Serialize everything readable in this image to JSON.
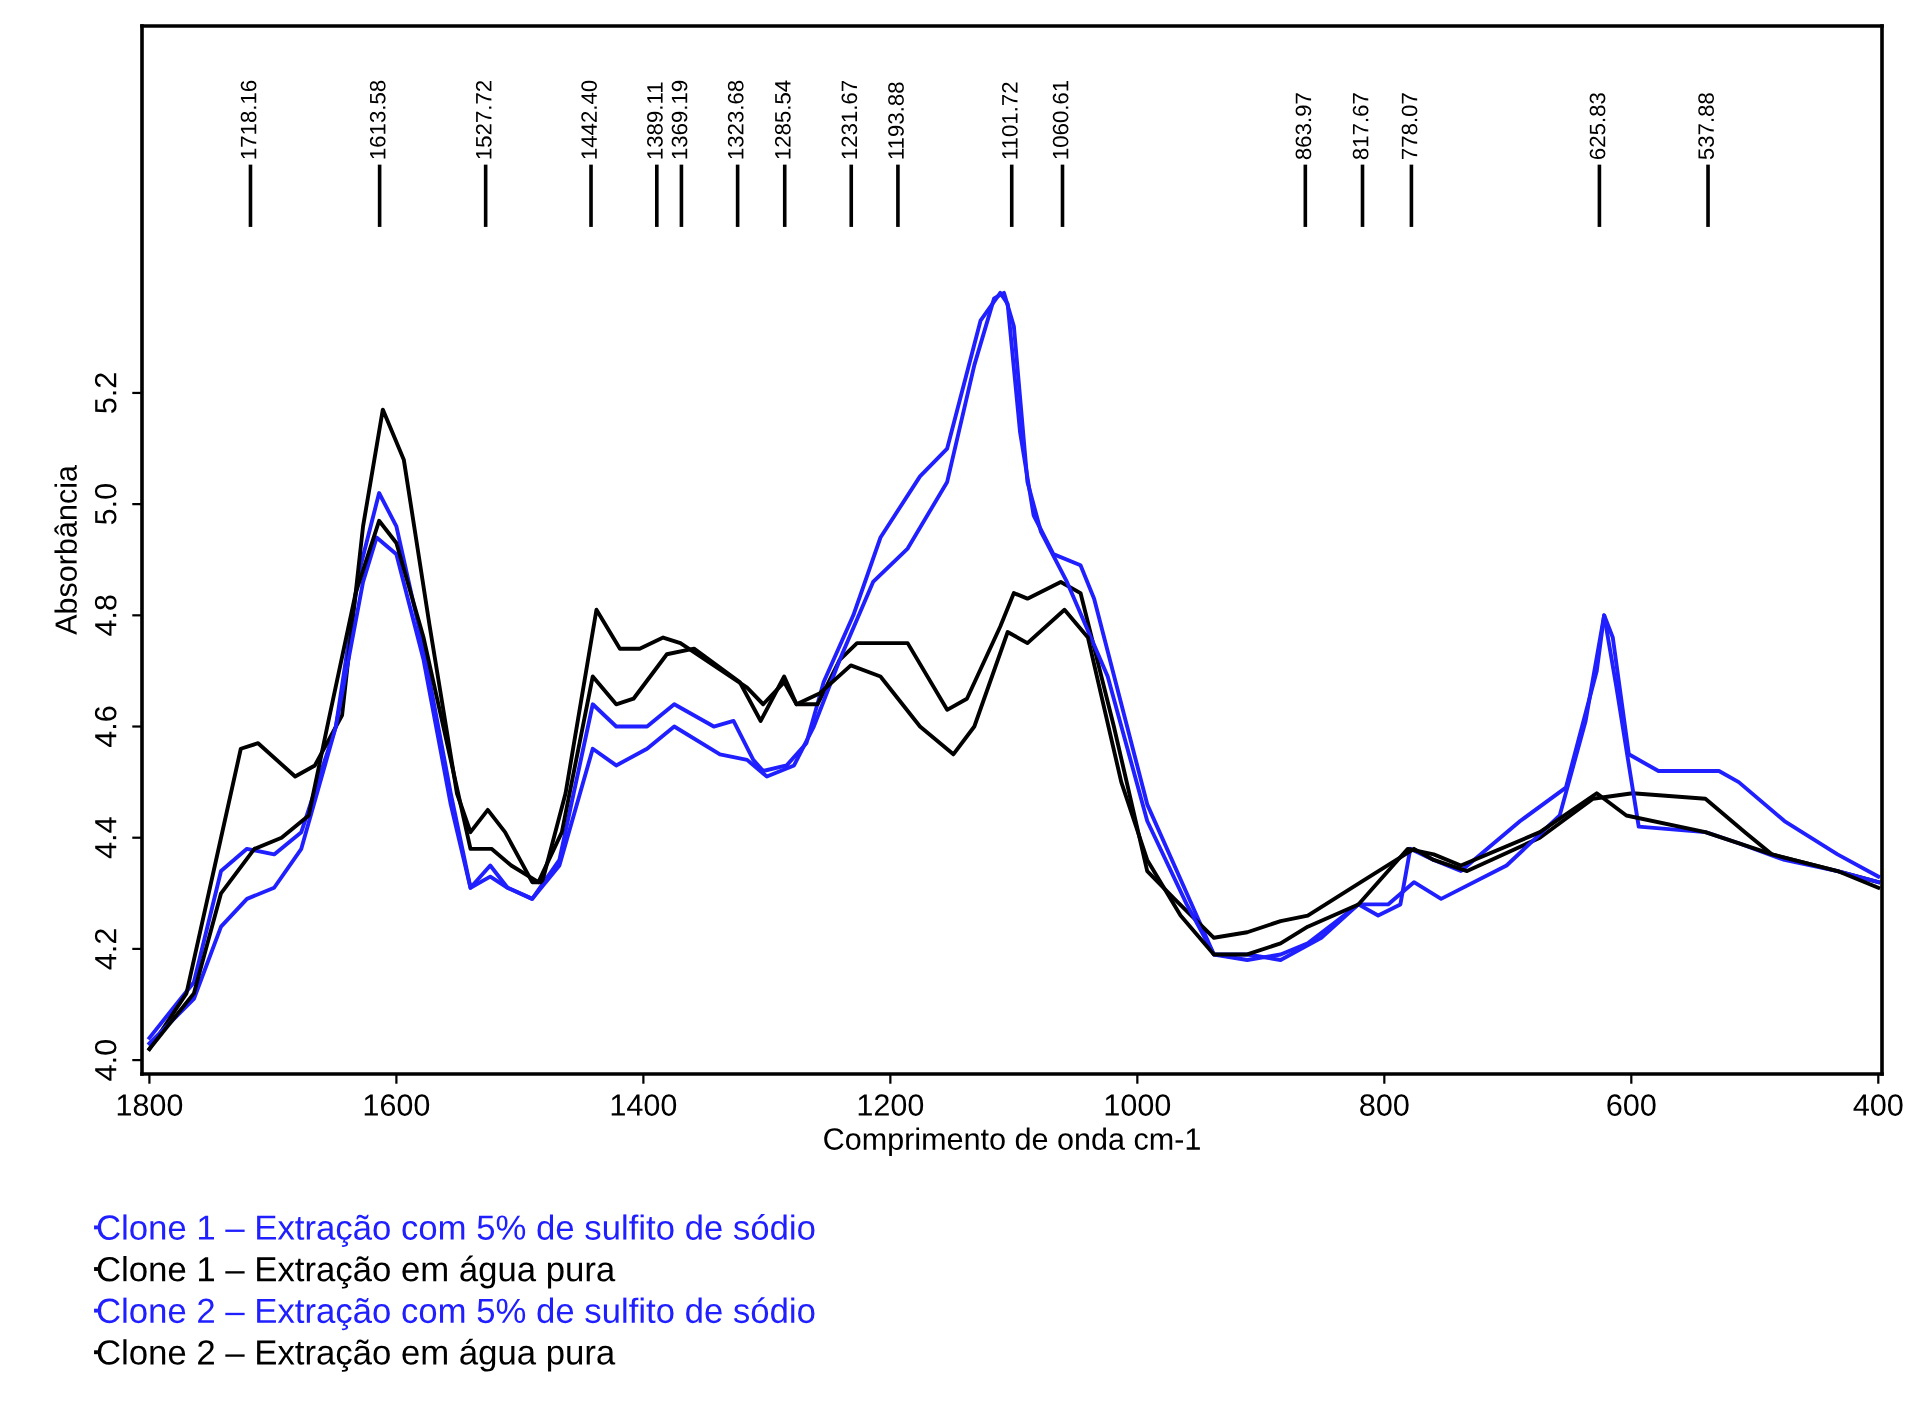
{
  "chart_data": {
    "type": "line",
    "xlabel": "Comprimento de onda cm-1",
    "ylabel": "Absorbância",
    "xlim": [
      1806,
      397
    ],
    "xticks": [
      1800,
      1600,
      1400,
      1200,
      1000,
      800,
      600,
      400
    ],
    "ylim": [
      3.975,
      5.86
    ],
    "yticks": [
      {
        "value": 4.0,
        "label": "4.0"
      },
      4.2,
      4.4,
      4.6,
      4.8,
      {
        "value": 5.0,
        "label": "5.0"
      },
      5.2
    ],
    "grid": false,
    "legend": "bottom",
    "marker": "none",
    "line_style": "solid",
    "series": [
      {
        "name": "Clone 1 – Extração com 5% de sulfito de sódio",
        "color": "#1f1fff",
        "x": [
          1800,
          1764,
          1742,
          1721,
          1699,
          1677,
          1649,
          1630,
          1614,
          1600,
          1578,
          1556,
          1540,
          1524,
          1510,
          1490,
          1468,
          1441,
          1422,
          1397,
          1375,
          1343,
          1327,
          1311,
          1303,
          1284,
          1268,
          1254,
          1230,
          1208,
          1176,
          1154,
          1127,
          1111,
          1105,
          1095,
          1084,
          1068,
          1046,
          1035,
          992,
          960,
          938,
          911,
          884,
          862,
          821,
          805,
          787,
          779,
          760,
          738,
          690,
          653,
          628,
          622,
          615,
          602,
          578,
          529,
          513,
          476,
          433,
          400
        ],
        "values": [
          4.04,
          4.14,
          4.34,
          4.38,
          4.37,
          4.41,
          4.6,
          4.88,
          5.02,
          4.96,
          4.74,
          4.48,
          4.31,
          4.35,
          4.31,
          4.29,
          4.36,
          4.64,
          4.6,
          4.6,
          4.64,
          4.6,
          4.61,
          4.54,
          4.52,
          4.53,
          4.57,
          4.68,
          4.8,
          4.94,
          5.05,
          5.1,
          5.33,
          5.38,
          5.36,
          5.13,
          4.98,
          4.91,
          4.89,
          4.83,
          4.46,
          4.3,
          4.19,
          4.18,
          4.19,
          4.21,
          4.28,
          4.26,
          4.28,
          4.38,
          4.36,
          4.34,
          4.43,
          4.49,
          4.7,
          4.8,
          4.76,
          4.55,
          4.52,
          4.52,
          4.5,
          4.43,
          4.37,
          4.33
        ]
      },
      {
        "name": "Clone 1 – Extração em água pura",
        "color": "#000000",
        "x": [
          1800,
          1770,
          1742,
          1726,
          1712,
          1682,
          1666,
          1644,
          1627,
          1611,
          1594,
          1573,
          1551,
          1540,
          1526,
          1512,
          1490,
          1482,
          1463,
          1438,
          1419,
          1403,
          1384,
          1370,
          1316,
          1303,
          1286,
          1276,
          1259,
          1241,
          1227,
          1186,
          1154,
          1138,
          1111,
          1100,
          1089,
          1062,
          1046,
          1019,
          992,
          970,
          938,
          911,
          884,
          862,
          819,
          776,
          760,
          733,
          674,
          631,
          599,
          540,
          508,
          486,
          433,
          400
        ],
        "values": [
          4.02,
          4.12,
          4.4,
          4.56,
          4.57,
          4.51,
          4.53,
          4.62,
          4.96,
          5.17,
          5.08,
          4.78,
          4.48,
          4.41,
          4.45,
          4.41,
          4.32,
          4.32,
          4.48,
          4.81,
          4.74,
          4.74,
          4.76,
          4.75,
          4.67,
          4.64,
          4.68,
          4.64,
          4.64,
          4.72,
          4.75,
          4.75,
          4.63,
          4.65,
          4.78,
          4.84,
          4.83,
          4.86,
          4.84,
          4.6,
          4.34,
          4.29,
          4.22,
          4.23,
          4.25,
          4.26,
          4.32,
          4.38,
          4.36,
          4.34,
          4.4,
          4.47,
          4.48,
          4.47,
          4.41,
          4.37,
          4.34,
          4.32
        ]
      },
      {
        "name": "Clone 2 – Extração com 5% de sulfito de sódio",
        "color": "#1f1fff",
        "x": [
          1800,
          1764,
          1742,
          1721,
          1699,
          1677,
          1649,
          1627,
          1616,
          1600,
          1578,
          1556,
          1540,
          1524,
          1510,
          1490,
          1468,
          1441,
          1422,
          1397,
          1375,
          1338,
          1316,
          1300,
          1278,
          1262,
          1241,
          1214,
          1186,
          1154,
          1132,
          1116,
          1108,
          1100,
          1089,
          1078,
          1057,
          1024,
          992,
          960,
          938,
          911,
          884,
          851,
          821,
          797,
          776,
          754,
          701,
          658,
          637,
          622,
          612,
          594,
          540,
          513,
          476,
          433,
          400
        ],
        "values": [
          4.03,
          4.11,
          4.24,
          4.29,
          4.31,
          4.38,
          4.6,
          4.86,
          4.94,
          4.91,
          4.72,
          4.46,
          4.31,
          4.33,
          4.31,
          4.29,
          4.35,
          4.56,
          4.53,
          4.56,
          4.6,
          4.55,
          4.54,
          4.51,
          4.53,
          4.6,
          4.72,
          4.86,
          4.92,
          5.04,
          5.25,
          5.37,
          5.38,
          5.32,
          5.04,
          4.95,
          4.86,
          4.69,
          4.43,
          4.28,
          4.19,
          4.19,
          4.18,
          4.22,
          4.28,
          4.28,
          4.32,
          4.29,
          4.35,
          4.44,
          4.61,
          4.8,
          4.67,
          4.42,
          4.41,
          4.39,
          4.36,
          4.34,
          4.32
        ]
      },
      {
        "name": "Clone 2 – Extração em água pura",
        "color": "#000000",
        "x": [
          1800,
          1764,
          1742,
          1715,
          1693,
          1671,
          1655,
          1633,
          1614,
          1600,
          1578,
          1556,
          1540,
          1523,
          1507,
          1485,
          1466,
          1441,
          1422,
          1408,
          1381,
          1359,
          1322,
          1305,
          1286,
          1276,
          1257,
          1232,
          1208,
          1176,
          1149,
          1132,
          1105,
          1089,
          1059,
          1040,
          1013,
          992,
          965,
          938,
          911,
          884,
          862,
          821,
          781,
          760,
          738,
          674,
          628,
          604,
          540,
          486,
          433,
          400
        ],
        "values": [
          4.02,
          4.12,
          4.3,
          4.38,
          4.4,
          4.44,
          4.61,
          4.84,
          4.97,
          4.93,
          4.76,
          4.54,
          4.38,
          4.38,
          4.35,
          4.32,
          4.41,
          4.69,
          4.64,
          4.65,
          4.73,
          4.74,
          4.68,
          4.61,
          4.69,
          4.64,
          4.66,
          4.71,
          4.69,
          4.6,
          4.55,
          4.6,
          4.77,
          4.75,
          4.81,
          4.76,
          4.5,
          4.36,
          4.26,
          4.19,
          4.19,
          4.21,
          4.24,
          4.28,
          4.38,
          4.37,
          4.35,
          4.41,
          4.48,
          4.44,
          4.41,
          4.37,
          4.34,
          4.31
        ]
      }
    ],
    "ref_lines": [
      {
        "axis": "x",
        "value": 1718.16,
        "label": "1718.16"
      },
      {
        "axis": "x",
        "value": 1613.58,
        "label": "1613.58"
      },
      {
        "axis": "x",
        "value": 1527.72,
        "label": "1527.72"
      },
      {
        "axis": "x",
        "value": 1442.4,
        "label": "1442.40"
      },
      {
        "axis": "x",
        "value": 1389.11,
        "label": "1389.11"
      },
      {
        "axis": "x",
        "value": 1369.19,
        "label": "1369.19"
      },
      {
        "axis": "x",
        "value": 1323.68,
        "label": "1323.68"
      },
      {
        "axis": "x",
        "value": 1285.54,
        "label": "1285.54"
      },
      {
        "axis": "x",
        "value": 1231.67,
        "label": "1231.67"
      },
      {
        "axis": "x",
        "value": 1193.88,
        "label": "1193.88"
      },
      {
        "axis": "x",
        "value": 1101.72,
        "label": "1101.72"
      },
      {
        "axis": "x",
        "value": 1060.61,
        "label": "1060.61"
      },
      {
        "axis": "x",
        "value": 863.97,
        "label": "863.97"
      },
      {
        "axis": "x",
        "value": 817.67,
        "label": "817.67"
      },
      {
        "axis": "x",
        "value": 778.07,
        "label": "778.07"
      },
      {
        "axis": "x",
        "value": 625.83,
        "label": "625.83"
      },
      {
        "axis": "x",
        "value": 537.88,
        "label": "537.88"
      }
    ]
  }
}
